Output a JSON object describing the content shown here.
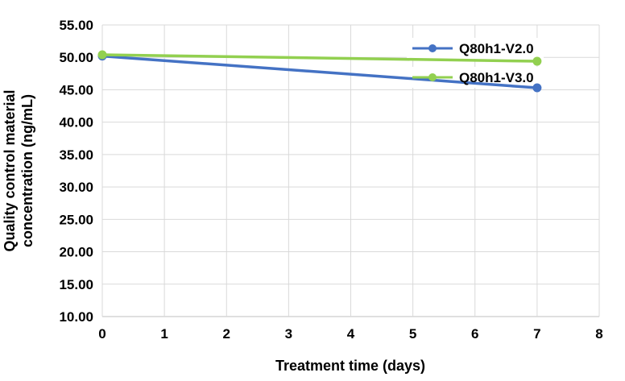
{
  "chart_data": {
    "type": "line",
    "title": "",
    "xlabel": "Treatment time (days)",
    "ylabel": "Quality control material concentration (ng/mL)",
    "ylabel_lines": [
      "Quality control material",
      "concentration (ng/mL)"
    ],
    "xlim": [
      0,
      8
    ],
    "ylim": [
      10,
      55
    ],
    "x_tick_values": [
      0,
      1,
      2,
      3,
      4,
      5,
      6,
      7,
      8
    ],
    "x_tick_labels": [
      "0",
      "1",
      "2",
      "3",
      "4",
      "5",
      "6",
      "7",
      "8"
    ],
    "y_tick_values": [
      10,
      15,
      20,
      25,
      30,
      35,
      40,
      45,
      50,
      55
    ],
    "y_tick_labels": [
      "10.00",
      "15.00",
      "20.00",
      "25.00",
      "30.00",
      "35.00",
      "40.00",
      "45.00",
      "50.00",
      "55.00"
    ],
    "grid": true,
    "grid_color": "#D9D9D9",
    "axis_color": "#BFBFBF",
    "legend_position": "inside-top-right",
    "legend_entries": [
      "Q80h1-V2.0",
      "Q80h1-V3.0"
    ],
    "series": [
      {
        "name": "Q80h1-V2.0",
        "color": "#4472C4",
        "x": [
          0,
          7
        ],
        "values": [
          50.2,
          45.3
        ]
      },
      {
        "name": "Q80h1-V3.0",
        "color": "#92D050",
        "x": [
          0,
          7
        ],
        "values": [
          50.4,
          49.4
        ]
      }
    ]
  }
}
